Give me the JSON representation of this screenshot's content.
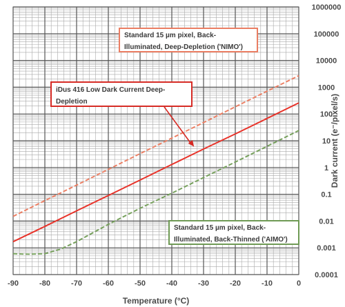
{
  "chart_data": {
    "type": "line",
    "title": "",
    "xlabel": "Temperature (°C)",
    "ylabel": "Dark current (e⁻/pixel/s)",
    "xlim": [
      -90,
      0
    ],
    "ylim": [
      0.0001,
      1000000
    ],
    "yscale": "log",
    "grid": true,
    "x_ticks": [
      -90,
      -80,
      -70,
      -60,
      -50,
      -40,
      -30,
      -20,
      -10,
      0
    ],
    "y_ticks": [
      "1000000",
      "100000",
      "10000",
      "1000",
      "100",
      "10",
      "1",
      "0.1",
      "0.01",
      "0.001",
      "0.0001"
    ],
    "series": [
      {
        "label": "iDus 416 Low Dark Current Deep-Depletion",
        "color": "#e8332a",
        "dash": "solid",
        "x": [
          -90,
          -80,
          -70,
          -60,
          -50,
          -40,
          -30,
          -20,
          -10,
          0
        ],
        "y": [
          0.0017,
          0.0063,
          0.024,
          0.09,
          0.34,
          1.3,
          4.9,
          18,
          68,
          260
        ]
      },
      {
        "label": "Standard 15 µm pixel, Back-Illuminated, Deep-Depletion ('NIMO')",
        "color": "#ec8065",
        "dash": "dashed",
        "x": [
          -90,
          -80,
          -70,
          -60,
          -50,
          -40,
          -30,
          -20,
          -10,
          0
        ],
        "y": [
          0.015,
          0.058,
          0.22,
          0.85,
          3.3,
          12.5,
          48,
          185,
          710,
          2700
        ]
      },
      {
        "label": "Standard 15 µm pixel, Back-Illuminated, Back-Thinned ('AIMO')",
        "color": "#76a05c",
        "dash": "dashed",
        "x": [
          -90,
          -85,
          -80,
          -75,
          -70,
          -60,
          -50,
          -40,
          -30,
          -20,
          -10,
          0
        ],
        "y": [
          0.0006,
          0.00058,
          0.0006,
          0.0009,
          0.0017,
          0.0075,
          0.03,
          0.11,
          0.42,
          1.6,
          6.2,
          24
        ]
      }
    ],
    "annotations": [
      {
        "id": "nimo",
        "text": "Standard 15 µm pixel, Back-Illuminated, Deep-Depletion ('NIMO')"
      },
      {
        "id": "idus",
        "text": "iDus 416 Low Dark Current Deep-Depletion",
        "arrow_to": {
          "x": -33,
          "y": 6
        }
      },
      {
        "id": "aimo",
        "text": "Standard 15 µm pixel, Back-Illuminated, Back-Thinned ('AIMO')"
      }
    ]
  }
}
